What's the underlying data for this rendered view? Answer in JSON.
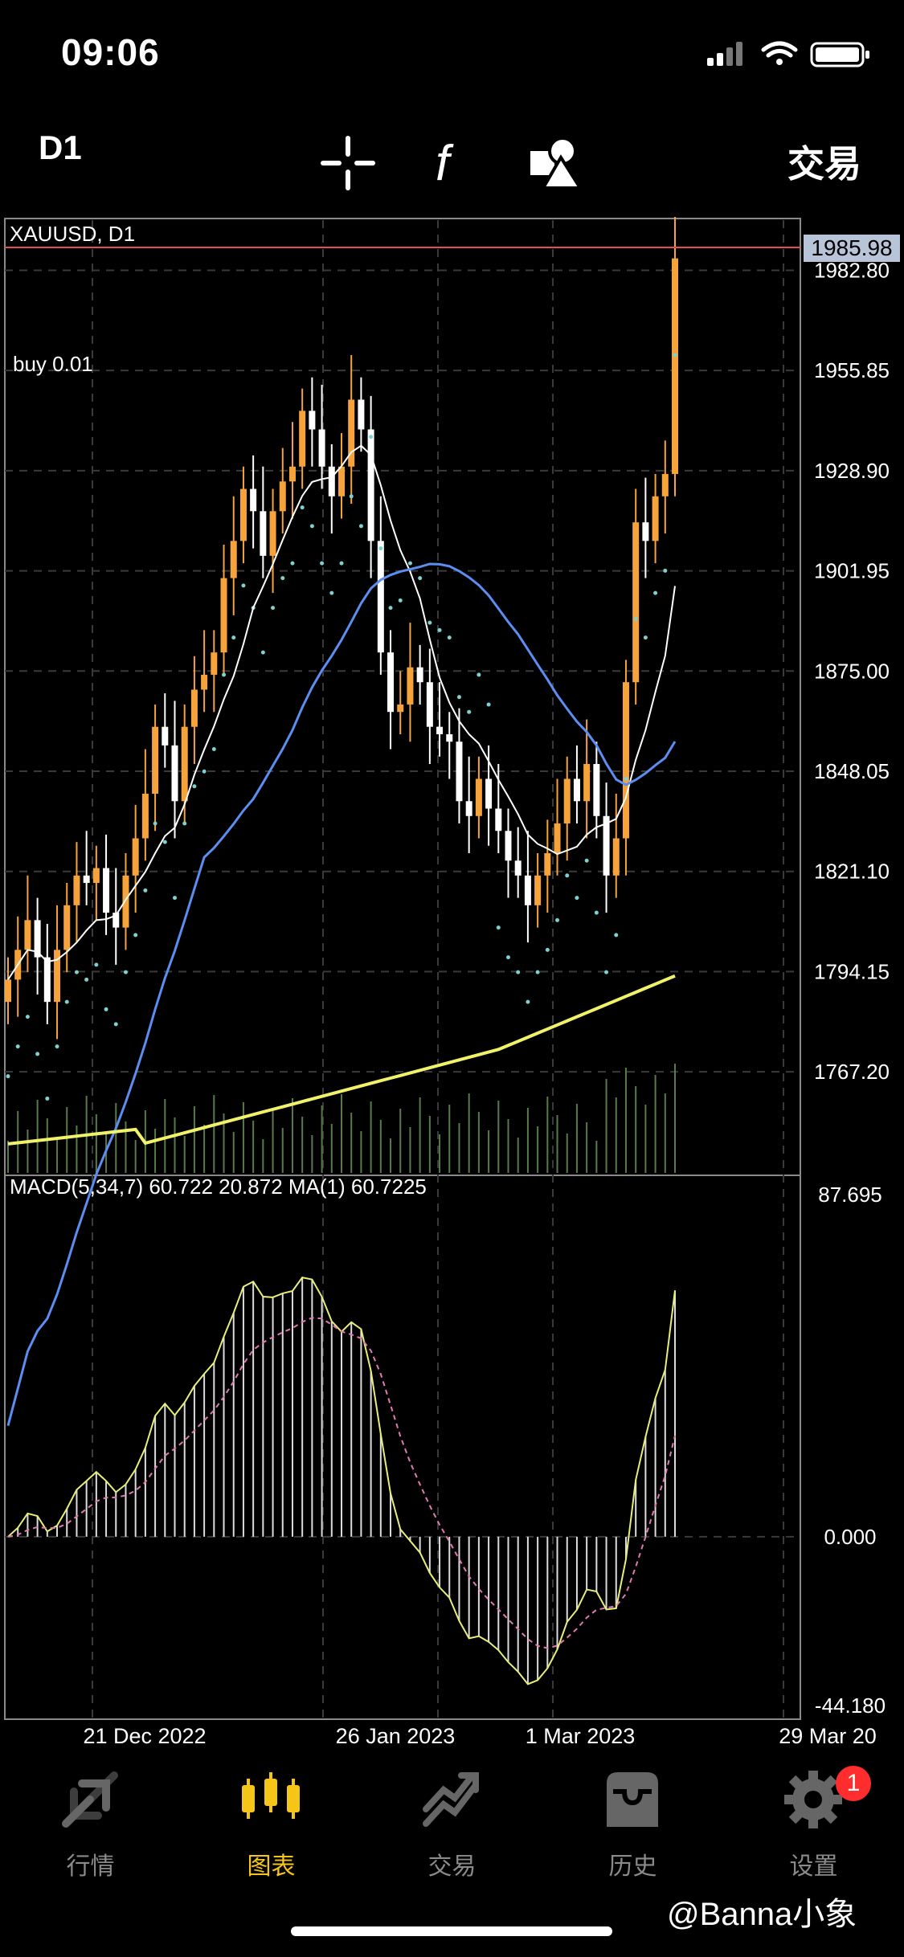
{
  "status": {
    "time": "09:06"
  },
  "toolbar": {
    "period": "D1",
    "trade_label": "交易",
    "icons": [
      "crosshair-icon",
      "function-icon",
      "objects-icon"
    ]
  },
  "chart": {
    "symbol_label": "XAUUSD, D1",
    "order_line_label": "buy 0.01",
    "current_price": "1985.98",
    "price_axis": [
      "1982.80",
      "1955.85",
      "1928.90",
      "1901.95",
      "1875.00",
      "1848.05",
      "1821.10",
      "1794.15",
      "1767.20"
    ],
    "macd_label": "MACD(5,34,7) 60.722 20.872 MA(1) 60.7225",
    "macd_axis": [
      "87.695",
      "0.000",
      "-44.180"
    ],
    "time_axis": [
      "21 Dec 2022",
      "26 Jan 2023",
      "1 Mar 2023",
      "29 Mar 20"
    ],
    "colors": {
      "bull_candle": "#f7a33c",
      "bear_candle": "#ffffff",
      "ma_fast": "#ffffff",
      "ma_mid": "#5b8ef0",
      "ma_slow": "#f2f26a",
      "sar_dots": "#7fd0d0",
      "price_line": "#e05050",
      "macd_line": "#e8ee7a",
      "macd_signal": "#e07ab0"
    }
  },
  "chart_data": {
    "type": "candlestick",
    "symbol": "XAUUSD",
    "timeframe": "D1",
    "ylim": [
      1740,
      1995
    ],
    "x_ticks": [
      "21 Dec 2022",
      "26 Jan 2023",
      "1 Mar 2023",
      "29 Mar 20"
    ],
    "last_price": 1985.98,
    "candles_close": [
      1792,
      1800,
      1808,
      1798,
      1786,
      1800,
      1812,
      1820,
      1818,
      1822,
      1810,
      1806,
      1820,
      1830,
      1842,
      1860,
      1855,
      1840,
      1860,
      1870,
      1874,
      1880,
      1900,
      1910,
      1924,
      1918,
      1906,
      1918,
      1926,
      1930,
      1945,
      1940,
      1930,
      1922,
      1930,
      1948,
      1940,
      1910,
      1880,
      1864,
      1866,
      1876,
      1872,
      1860,
      1858,
      1856,
      1840,
      1836,
      1846,
      1838,
      1832,
      1824,
      1820,
      1812,
      1820,
      1826,
      1834,
      1846,
      1840,
      1850,
      1836,
      1820,
      1830,
      1872,
      1915,
      1910,
      1922,
      1928,
      1986
    ],
    "macd_ylim": [
      -44.18,
      87.695
    ],
    "macd_main_last": 60.722,
    "macd_signal_last": 20.872
  },
  "tabs": [
    {
      "label": "行情",
      "icon": "quotes-icon",
      "active": false
    },
    {
      "label": "图表",
      "icon": "chart-candles-icon",
      "active": true
    },
    {
      "label": "交易",
      "icon": "trade-icon",
      "active": false
    },
    {
      "label": "历史",
      "icon": "history-icon",
      "active": false
    },
    {
      "label": "设置",
      "icon": "settings-icon",
      "active": false,
      "badge": "1"
    }
  ],
  "watermark": "@Banna小象"
}
